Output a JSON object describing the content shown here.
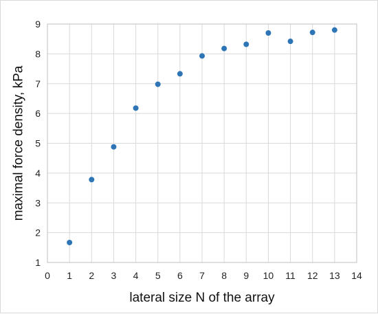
{
  "chart_data": {
    "type": "scatter",
    "title": "",
    "xlabel": "lateral size N of the array",
    "ylabel": "maximal force density, kPa",
    "xlim": [
      0,
      14
    ],
    "ylim": [
      1,
      9
    ],
    "xticks": [
      "0",
      "1",
      "2",
      "3",
      "4",
      "5",
      "6",
      "7",
      "8",
      "9",
      "10",
      "11",
      "12",
      "13",
      "14"
    ],
    "yticks": [
      "1",
      "2",
      "3",
      "4",
      "5",
      "6",
      "7",
      "8",
      "9"
    ],
    "grid": true,
    "legend": "none",
    "marker_color": "#2E75B6",
    "series": [
      {
        "x": [
          1,
          2,
          3,
          4,
          5,
          6,
          7,
          8,
          9,
          10,
          11,
          12,
          13
        ],
        "y": [
          1.67,
          3.78,
          4.88,
          6.18,
          6.98,
          7.33,
          7.93,
          8.18,
          8.32,
          8.7,
          8.42,
          8.72,
          8.8
        ]
      }
    ]
  }
}
